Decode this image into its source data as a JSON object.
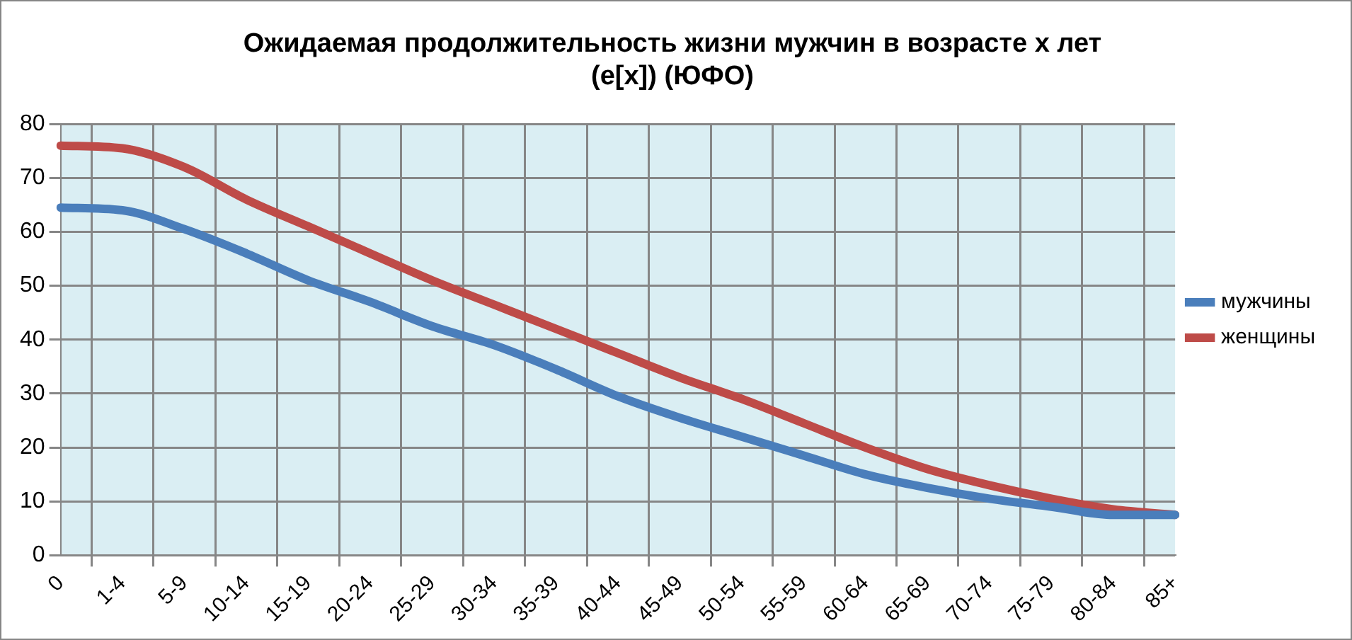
{
  "chart_data": {
    "type": "line",
    "title": [
      "Ожидаемая продолжительность жизни мужчин в возрасте х лет",
      "(e[x]) (ЮФО)"
    ],
    "categories": [
      "0",
      "1-4",
      "5-9",
      "10-14",
      "15-19",
      "20-24",
      "25-29",
      "30-34",
      "35-39",
      "40-44",
      "45-49",
      "50-54",
      "55-59",
      "60-64",
      "65-69",
      "70-74",
      "75-79",
      "80-84",
      "85+"
    ],
    "series": [
      {
        "name": "мужчины",
        "color": "#4a7ebb",
        "values": [
          64.5,
          64,
          60.5,
          56,
          51,
          47,
          42.5,
          39,
          34.5,
          29.5,
          25.5,
          22,
          18.5,
          15,
          12.5,
          10.5,
          9,
          7.5,
          7.5
        ]
      },
      {
        "name": "женщины",
        "color": "#be4b48",
        "values": [
          76,
          75.5,
          72,
          66,
          61,
          56,
          51,
          46.5,
          42,
          37.5,
          33,
          29,
          24.5,
          20,
          16,
          13,
          10.5,
          8.5,
          7.5
        ]
      }
    ],
    "ylim": [
      0,
      80
    ],
    "yticks": [
      0,
      10,
      20,
      30,
      40,
      50,
      60,
      70,
      80
    ],
    "grid": true,
    "legend": "right",
    "marker": "none",
    "line_style": "solid"
  }
}
